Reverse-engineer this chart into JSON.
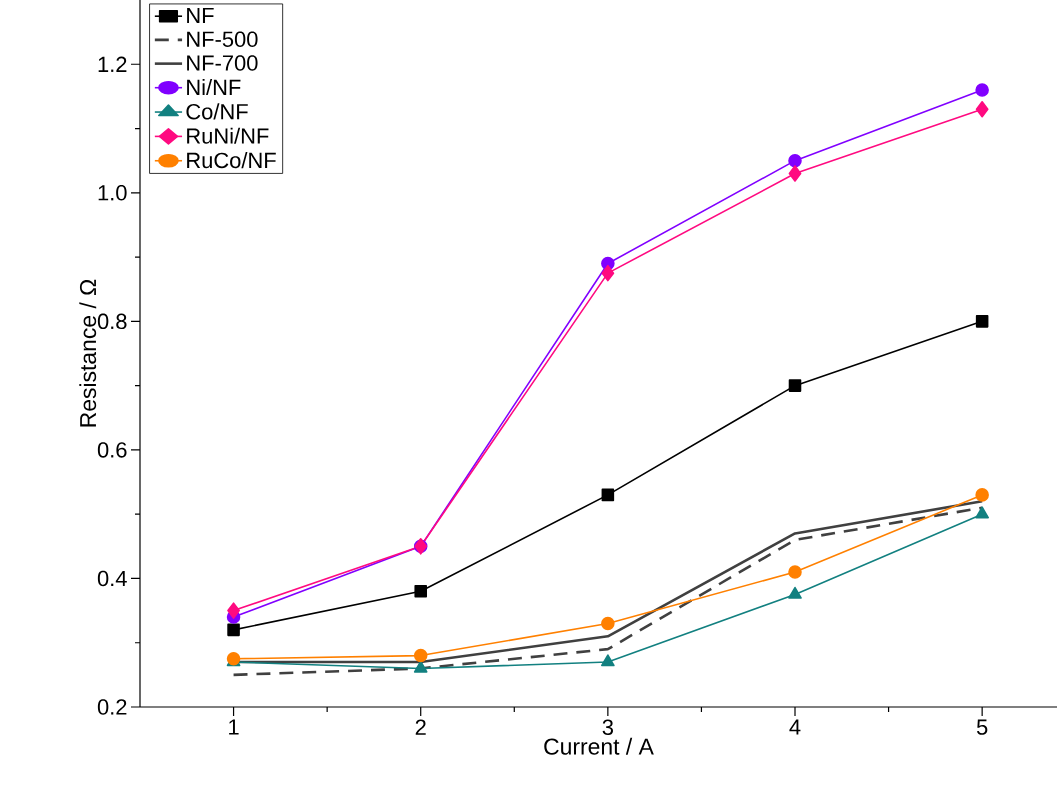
{
  "chart_data": {
    "type": "line",
    "xlabel": "Current / A",
    "ylabel": "Resistance / Ω",
    "x": [
      1,
      2,
      3,
      4,
      5
    ],
    "xlim": [
      0.5,
      5.4
    ],
    "xticks": [
      1,
      2,
      3,
      4,
      5
    ],
    "ylim": [
      0.2,
      1.3
    ],
    "yticks": [
      0.2,
      0.4,
      0.6,
      0.8,
      {
        "value": 1.0,
        "label": "1.0"
      },
      1.2
    ],
    "legend": "top left",
    "grid": false,
    "series": [
      {
        "name": "NF",
        "color": "#000000",
        "marker": "square",
        "line_style": "solid",
        "values": [
          0.32,
          0.38,
          0.53,
          0.7,
          0.8
        ]
      },
      {
        "name": "NF-500",
        "color": "#404040",
        "marker": "none",
        "line_style": "dashed",
        "values": [
          0.25,
          0.26,
          0.29,
          0.46,
          0.51
        ]
      },
      {
        "name": "NF-700",
        "color": "#404040",
        "marker": "none",
        "line_style": "solid",
        "values": [
          0.27,
          0.27,
          0.31,
          0.47,
          0.52
        ]
      },
      {
        "name": "Ni/NF",
        "color": "#8000ff",
        "marker": "circle",
        "line_style": "solid",
        "values": [
          0.34,
          0.45,
          0.89,
          1.05,
          1.16
        ]
      },
      {
        "name": "Co/NF",
        "color": "#128080",
        "marker": "triangle",
        "line_style": "solid",
        "values": [
          0.27,
          0.26,
          0.27,
          0.375,
          0.5
        ]
      },
      {
        "name": "RuNi/NF",
        "color": "#ff0a80",
        "marker": "diamond",
        "line_style": "solid",
        "values": [
          0.35,
          0.45,
          0.875,
          1.03,
          1.13
        ]
      },
      {
        "name": "RuCo/NF",
        "color": "#ff8000",
        "marker": "circle",
        "line_style": "solid",
        "values": [
          0.275,
          0.28,
          0.33,
          0.41,
          0.53
        ]
      }
    ]
  }
}
